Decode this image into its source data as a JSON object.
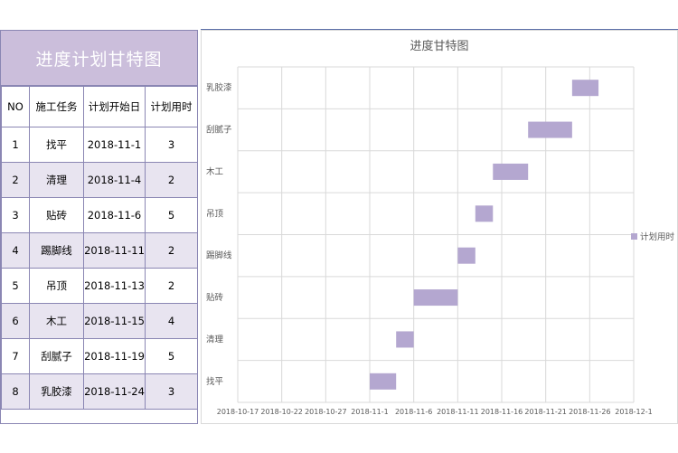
{
  "table": {
    "title": "进度计划甘特图",
    "headers": [
      "NO",
      "施工任务",
      "计划开始日",
      "计划用时"
    ],
    "rows": [
      {
        "no": "1",
        "task": "找平",
        "start": "2018-11-1",
        "days": "3"
      },
      {
        "no": "2",
        "task": "清理",
        "start": "2018-11-4",
        "days": "2"
      },
      {
        "no": "3",
        "task": "贴砖",
        "start": "2018-11-6",
        "days": "5"
      },
      {
        "no": "4",
        "task": "踢脚线",
        "start": "2018-11-11",
        "days": "2"
      },
      {
        "no": "5",
        "task": "吊顶",
        "start": "2018-11-13",
        "days": "2"
      },
      {
        "no": "6",
        "task": "木工",
        "start": "2018-11-15",
        "days": "4"
      },
      {
        "no": "7",
        "task": "刮腻子",
        "start": "2018-11-19",
        "days": "5"
      },
      {
        "no": "8",
        "task": "乳胶漆",
        "start": "2018-11-24",
        "days": "3"
      }
    ]
  },
  "chart_data": {
    "type": "bar",
    "orientation": "horizontal-stacked-gantt",
    "title": "进度甘特图",
    "categories": [
      "找平",
      "清理",
      "贴砖",
      "踢脚线",
      "吊顶",
      "木工",
      "刮腻子",
      "乳胶漆"
    ],
    "series": [
      {
        "name": "计划开始日",
        "hidden": true,
        "values": [
          "2018-11-01",
          "2018-11-04",
          "2018-11-06",
          "2018-11-11",
          "2018-11-13",
          "2018-11-15",
          "2018-11-19",
          "2018-11-24"
        ]
      },
      {
        "name": "计划用时",
        "values": [
          3,
          2,
          5,
          2,
          2,
          4,
          5,
          3
        ]
      }
    ],
    "x_axis": {
      "min": "2018-10-17",
      "max": "2018-12-01",
      "major_unit_days": 5,
      "tick_labels": [
        "2018-10-17",
        "2018-10-22",
        "2018-10-27",
        "2018-11-1",
        "2018-11-6",
        "2018-11-11",
        "2018-11-16",
        "2018-11-21",
        "2018-11-26",
        "2018-12-1"
      ]
    },
    "legend": {
      "position": "right",
      "entries": [
        "计划用时"
      ]
    },
    "bar_color": "#b4a7d0",
    "grid": true
  }
}
